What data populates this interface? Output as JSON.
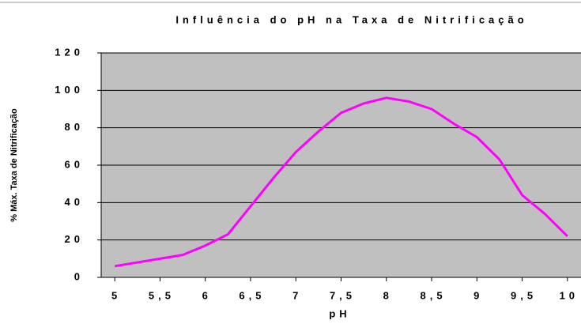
{
  "chart_data": {
    "type": "line",
    "title": "Influência do pH na Taxa de Nitrificação",
    "x_label": "pH",
    "y_label": "% Máx. Taxa de Nitrificação",
    "x": [
      5,
      5.25,
      5.5,
      5.75,
      6,
      6.25,
      6.5,
      6.75,
      7,
      7.25,
      7.5,
      7.75,
      8,
      8.25,
      8.5,
      8.75,
      9,
      9.25,
      9.5,
      9.75,
      10
    ],
    "series": [
      {
        "name": "Taxa de Nitrificação",
        "color": "#ff00ff",
        "values": [
          6,
          8,
          10,
          12,
          17,
          23,
          38,
          53,
          67,
          78,
          88,
          93,
          96,
          94,
          90,
          82,
          75,
          63,
          44,
          34,
          22
        ]
      }
    ],
    "xlim": [
      4.85,
      10.15
    ],
    "xticks": [
      5,
      {
        "value": 5.5,
        "label": "5,5"
      },
      6,
      {
        "value": 6.5,
        "label": "6,5"
      },
      7,
      {
        "value": 7.5,
        "label": "7,5"
      },
      8,
      {
        "value": 8.5,
        "label": "8,5"
      },
      9,
      {
        "value": 9.5,
        "label": "9,5"
      },
      10
    ],
    "ylim": [
      0,
      120
    ],
    "yticks": [
      0,
      20,
      40,
      60,
      80,
      100,
      120
    ],
    "grid": true,
    "plot_background": "#c0c0c0"
  }
}
